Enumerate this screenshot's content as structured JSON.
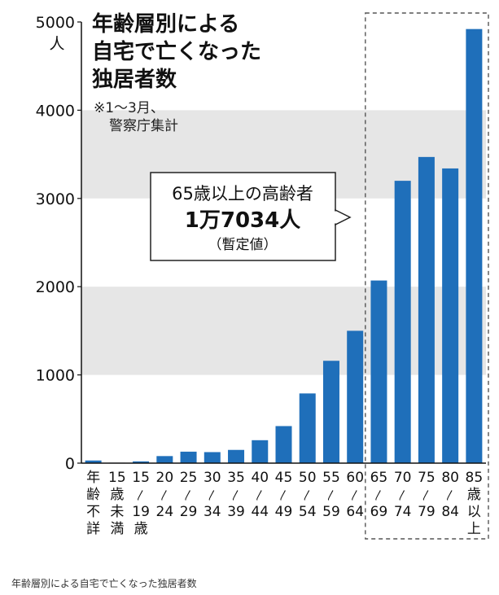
{
  "caption": "年齢層別による自宅で亡くなった独居者数",
  "chart_data": {
    "type": "bar",
    "title_lines": [
      "年齢層別による",
      "自宅で亡くなった",
      "独居者数"
    ],
    "note_lines": [
      "※1～3月、",
      "警察庁集計"
    ],
    "ylabel": "人",
    "ylim": [
      0,
      5000
    ],
    "yticks": [
      0,
      1000,
      2000,
      3000,
      4000,
      5000
    ],
    "grid": "alternating horizontal bands",
    "categories": [
      [
        "年",
        "齢",
        "不",
        "詳"
      ],
      [
        "15",
        "歳",
        "未",
        "満"
      ],
      [
        "15",
        "〳",
        "19",
        "歳"
      ],
      [
        "20",
        "〳",
        "24"
      ],
      [
        "25",
        "〳",
        "29"
      ],
      [
        "30",
        "〳",
        "34"
      ],
      [
        "35",
        "〳",
        "39"
      ],
      [
        "40",
        "〳",
        "44"
      ],
      [
        "45",
        "〳",
        "49"
      ],
      [
        "50",
        "〳",
        "54"
      ],
      [
        "55",
        "〳",
        "59"
      ],
      [
        "60",
        "〳",
        "64"
      ],
      [
        "65",
        "〳",
        "69"
      ],
      [
        "70",
        "〳",
        "74"
      ],
      [
        "75",
        "〳",
        "79"
      ],
      [
        "80",
        "〳",
        "84"
      ],
      [
        "85",
        "歳",
        "以",
        "上"
      ]
    ],
    "values": [
      30,
      5,
      20,
      80,
      130,
      125,
      150,
      260,
      420,
      790,
      1160,
      1500,
      2070,
      3200,
      3470,
      3340,
      4920
    ],
    "highlight_range": [
      12,
      16
    ],
    "callout_lines": [
      "65歳以上の高齢者",
      "1万7034人",
      "（暫定値）"
    ],
    "colors": {
      "bar": "#1f6fba",
      "band": "#e6e6e6",
      "text": "#111111",
      "dashed": "#555555"
    }
  }
}
